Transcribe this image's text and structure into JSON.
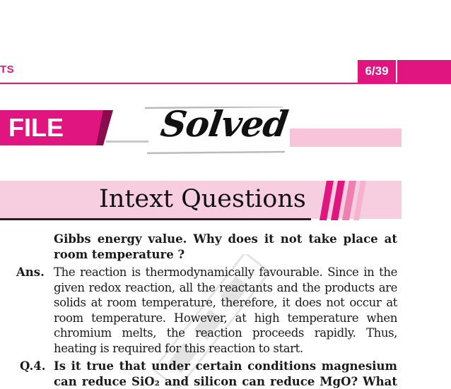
{
  "header": {
    "left_text": "TS",
    "page_number": "6/39"
  },
  "banner": {
    "file_label": "FILE",
    "solved_label": "Solved"
  },
  "section": {
    "title": "Intext Questions"
  },
  "content": {
    "question_cont_lines": [
      "Gibbs energy value. Why does it not take place at",
      "room temperature ?"
    ],
    "answer_label": "Ans.",
    "answer_lines": [
      "The reaction is thermodynamically favourable. Since in the",
      "given redox reaction, all the reactants and the products are",
      "solids at room temperature, therefore, it does not occur at",
      "room temperature. However, at high temperature when",
      "chromium melts, the reaction proceeds rapidly. Thus,",
      "heating is required for this reaction to start."
    ],
    "q4_label": "Q.4.",
    "q4_lines": [
      "Is it true that under certain conditions magnesium",
      "can reduce SiO₂ and silicon can reduce MgO? What"
    ]
  },
  "colors": {
    "accent": "#e0157f",
    "light_pink": "#f7cde0",
    "text": "#1a1a1a"
  }
}
